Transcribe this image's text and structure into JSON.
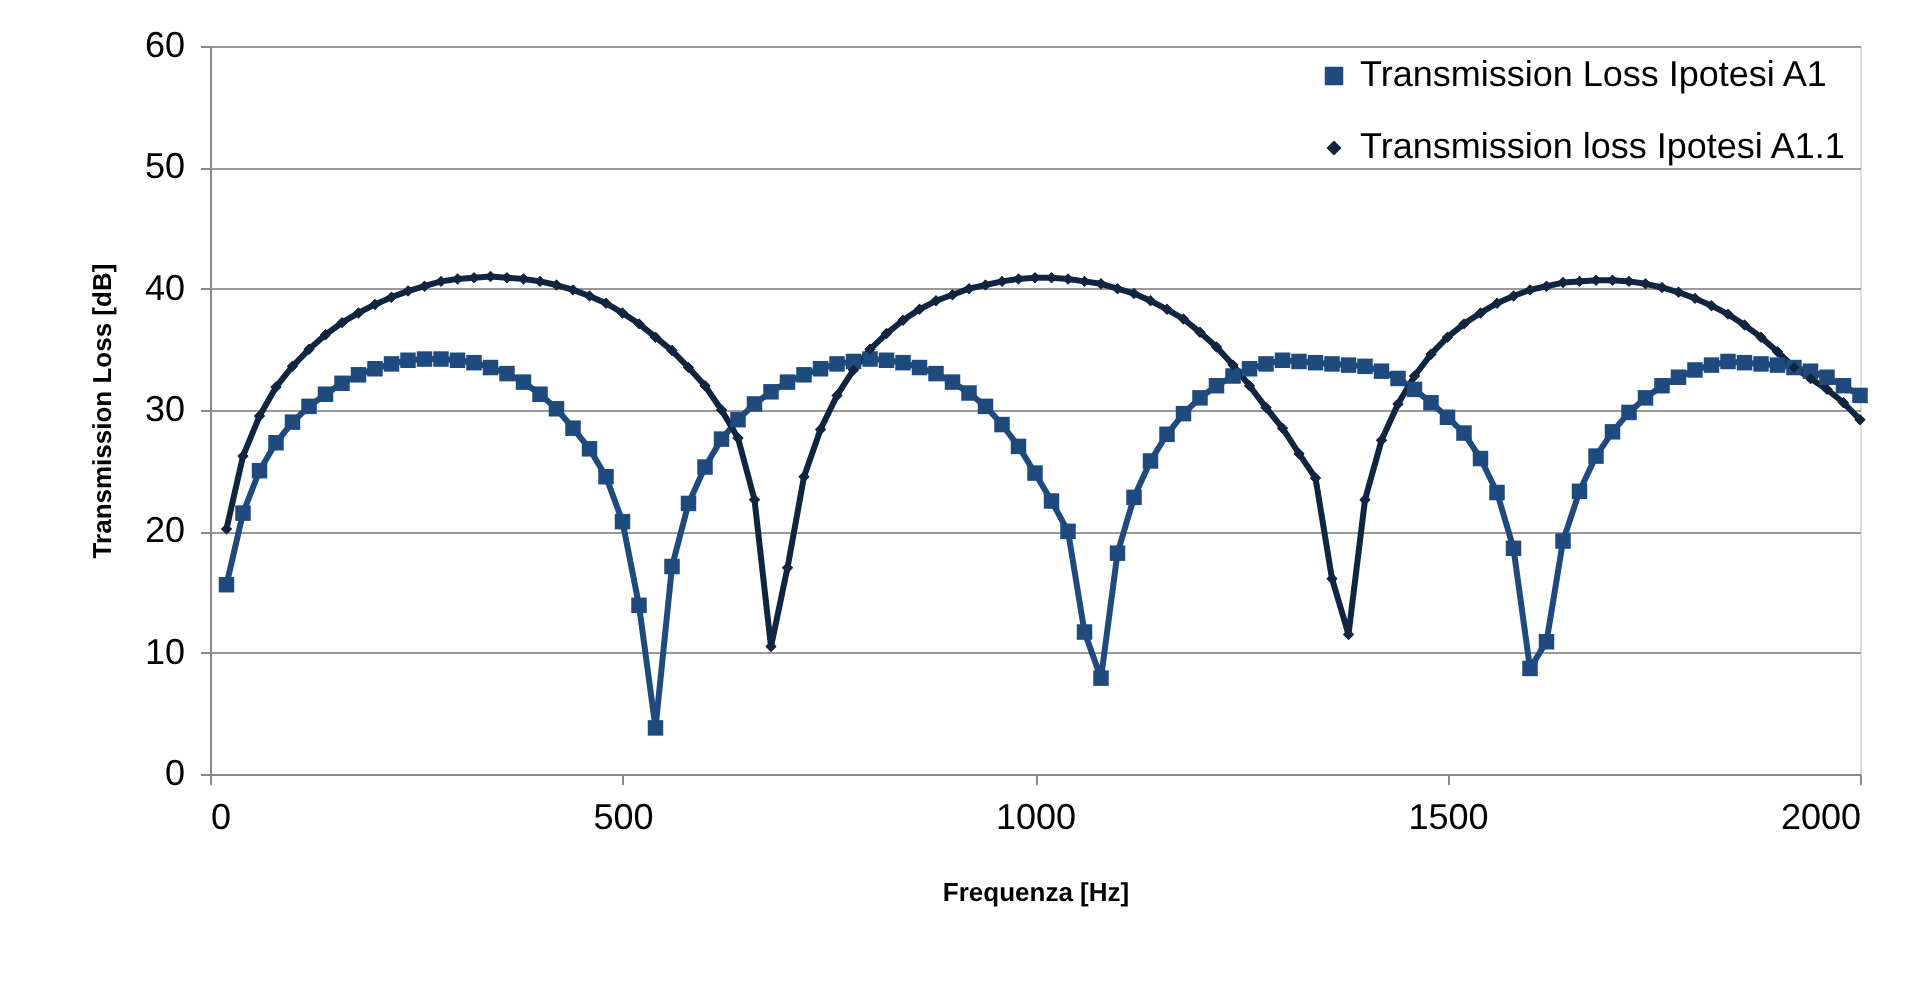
{
  "chart_data": {
    "type": "line",
    "xlabel": "Frequenza [Hz]",
    "ylabel": "Transmission Loss [dB]",
    "xlim": [
      0,
      2000
    ],
    "xticks": [
      0,
      500,
      {
        "value": 1000,
        "label": "1000"
      },
      {
        "value": 1500,
        "label": "1500"
      },
      {
        "value": 2000,
        "label": "2000"
      }
    ],
    "ylim": [
      0,
      60
    ],
    "yticks": [
      0,
      10,
      20,
      30,
      40,
      50,
      60
    ],
    "grid": "y",
    "legend": "top right",
    "line_style": "solid",
    "series": [
      {
        "name": "Transmission Loss Ipotesi A1",
        "color": "#1f4a7e",
        "marker": "square",
        "x": [
          20,
          40,
          60,
          80,
          100,
          120,
          140,
          160,
          180,
          200,
          220,
          240,
          260,
          280,
          300,
          320,
          340,
          360,
          380,
          400,
          420,
          440,
          460,
          480,
          500,
          520,
          540,
          560,
          580,
          600,
          620,
          640,
          660,
          680,
          700,
          720,
          740,
          760,
          780,
          800,
          820,
          840,
          860,
          880,
          900,
          920,
          940,
          960,
          980,
          1000,
          1020,
          1040,
          1060,
          1080,
          1100,
          1120,
          1140,
          1160,
          1180,
          1200,
          1220,
          1240,
          1260,
          1280,
          1300,
          1320,
          1340,
          1360,
          1380,
          1400,
          1420,
          1440,
          1460,
          1480,
          1500,
          1520,
          1540,
          1560,
          1580,
          1600,
          1620,
          1640,
          1660,
          1680,
          1700,
          1720,
          1740,
          1760,
          1780,
          1800,
          1820,
          1840,
          1860,
          1880,
          1900,
          1920,
          1940,
          1960,
          1980,
          2000
        ],
        "values": [
          15.6,
          21.5,
          25,
          27.3,
          29,
          30.3,
          31.3,
          32.2,
          32.9,
          33.4,
          33.8,
          34.1,
          34.2,
          34.2,
          34.1,
          33.9,
          33.5,
          33,
          32.3,
          31.3,
          30.1,
          28.5,
          26.8,
          24.5,
          20.8,
          13.9,
          3.8,
          17.1,
          22.3,
          25.3,
          27.6,
          29.2,
          30.5,
          31.5,
          32.3,
          32.9,
          33.4,
          33.8,
          34,
          34.2,
          34.1,
          33.9,
          33.5,
          33,
          32.3,
          31.4,
          30.3,
          28.8,
          27,
          24.8,
          22.5,
          20,
          11.7,
          7.9,
          18.2,
          22.8,
          25.8,
          28,
          29.7,
          31,
          32,
          32.8,
          33.4,
          33.8,
          34.1,
          34,
          33.9,
          33.8,
          33.7,
          33.6,
          33.2,
          32.6,
          31.7,
          30.6,
          29.4,
          28.1,
          26,
          23.2,
          18.6,
          8.7,
          10.9,
          19.2,
          23.3,
          26.2,
          28.2,
          29.8,
          31,
          32,
          32.7,
          33.3,
          33.7,
          34,
          33.9,
          33.8,
          33.7,
          33.5,
          33.2,
          32.7,
          32,
          31.2
        ]
      },
      {
        "name": "Transmission loss Ipotesi A1.1",
        "color": "#0f2540",
        "marker": "diamond",
        "x": [
          20,
          40,
          60,
          80,
          100,
          120,
          140,
          160,
          180,
          200,
          220,
          240,
          260,
          280,
          300,
          320,
          340,
          360,
          380,
          400,
          420,
          440,
          460,
          480,
          500,
          520,
          540,
          560,
          580,
          600,
          620,
          640,
          660,
          680,
          700,
          720,
          740,
          760,
          780,
          800,
          820,
          840,
          860,
          880,
          900,
          920,
          940,
          960,
          980,
          1000,
          1020,
          1040,
          1060,
          1080,
          1100,
          1120,
          1140,
          1160,
          1180,
          1200,
          1220,
          1240,
          1260,
          1280,
          1300,
          1320,
          1340,
          1360,
          1380,
          1400,
          1420,
          1440,
          1460,
          1480,
          1500,
          1520,
          1540,
          1560,
          1580,
          1600,
          1620,
          1640,
          1660,
          1680,
          1700,
          1720,
          1740,
          1760,
          1780,
          1800,
          1820,
          1840,
          1860,
          1880,
          1900,
          1920,
          1940,
          1960,
          1980,
          2000
        ],
        "values": [
          20.2,
          26.2,
          29.5,
          31.9,
          33.6,
          35,
          36.2,
          37.2,
          38,
          38.7,
          39.3,
          39.8,
          40.2,
          40.6,
          40.8,
          40.9,
          41,
          40.9,
          40.8,
          40.6,
          40.3,
          39.9,
          39.4,
          38.8,
          38,
          37.1,
          36,
          34.9,
          33.5,
          32,
          30,
          27.7,
          22.6,
          10.5,
          17,
          24.5,
          28.4,
          31.2,
          33.3,
          35,
          36.3,
          37.4,
          38.3,
          39,
          39.5,
          40,
          40.3,
          40.6,
          40.8,
          40.9,
          40.9,
          40.8,
          40.6,
          40.4,
          40,
          39.6,
          39,
          38.3,
          37.5,
          36.4,
          35.2,
          33.7,
          32,
          30.2,
          28.5,
          26.4,
          24.4,
          16.1,
          11.5,
          22.6,
          27.5,
          30.5,
          32.8,
          34.6,
          36,
          37.1,
          38,
          38.8,
          39.4,
          39.9,
          40.2,
          40.5,
          40.6,
          40.7,
          40.7,
          40.6,
          40.4,
          40.1,
          39.7,
          39.2,
          38.6,
          37.9,
          37,
          36,
          34.8,
          33.5,
          32.6,
          31.7,
          30.6,
          29.2
        ]
      }
    ]
  }
}
